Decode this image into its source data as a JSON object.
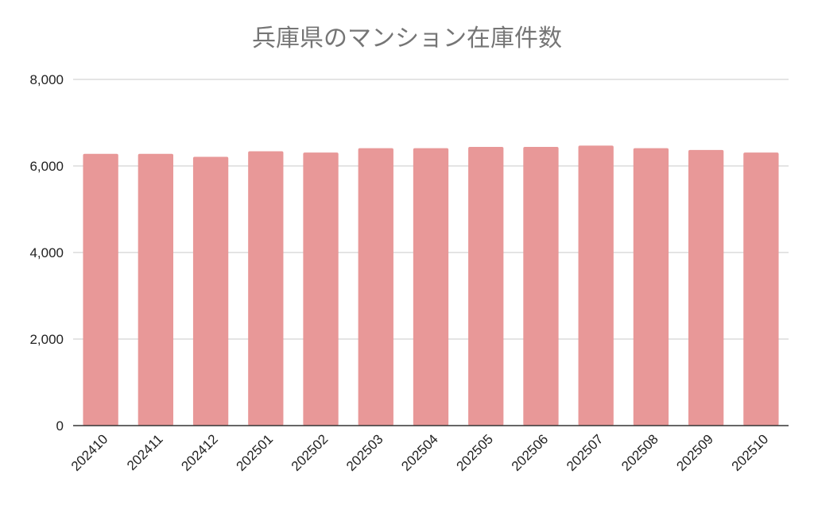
{
  "chart_data": {
    "type": "bar",
    "title": "兵庫県のマンション在庫件数",
    "xlabel": "",
    "ylabel": "",
    "categories": [
      "202410",
      "202411",
      "202412",
      "202501",
      "202502",
      "202503",
      "202504",
      "202505",
      "202506",
      "202507",
      "202508",
      "202509",
      "202510"
    ],
    "series": [
      {
        "values": [
          6280,
          6280,
          6210,
          6340,
          6310,
          6410,
          6410,
          6440,
          6440,
          6470,
          6410,
          6370,
          6310
        ]
      }
    ],
    "ylim": [
      0,
      8000
    ],
    "yticks": [
      0,
      2000,
      4000,
      6000,
      8000
    ],
    "ytick_labels": [
      "0",
      "2,000",
      "4,000",
      "6,000",
      "8,000"
    ],
    "grid": true,
    "legend": "none",
    "colors": {
      "bar": "#e89898",
      "grid": "#c8c8c8",
      "axis": "#333333",
      "title": "#757575"
    }
  }
}
